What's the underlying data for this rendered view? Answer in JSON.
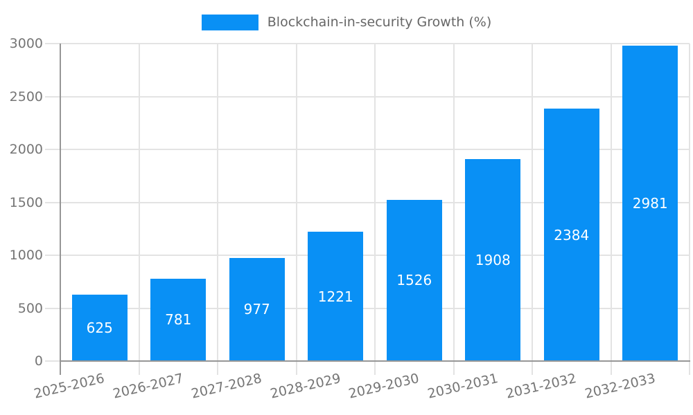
{
  "legend": {
    "label": "Blockchain-in-security Growth (%)"
  },
  "chart_data": {
    "type": "bar",
    "title": "Blockchain-in-security Growth (%)",
    "categories": [
      "2025-2026",
      "2026-2027",
      "2027-2028",
      "2028-2029",
      "2029-2030",
      "2030-2031",
      "2031-2032",
      "2032-2033"
    ],
    "values": [
      625,
      781,
      977,
      1221,
      1526,
      1908,
      2384,
      2981
    ],
    "xlabel": "",
    "ylabel": "",
    "ylim": [
      0,
      3000
    ],
    "ytick_step": 500,
    "yticks": [
      "0",
      "500",
      "1000",
      "1500",
      "2000",
      "2500",
      "3000"
    ],
    "grid": true,
    "legend_position": "top-center",
    "x_label_rotation_deg": -13
  },
  "colors": {
    "bar": "#0990f5",
    "grid": "#e3e3e3",
    "axis": "#969696",
    "tick_label": "#757575",
    "legend_text": "#666666",
    "value_label": "#ffffff",
    "background": "#ffffff"
  }
}
